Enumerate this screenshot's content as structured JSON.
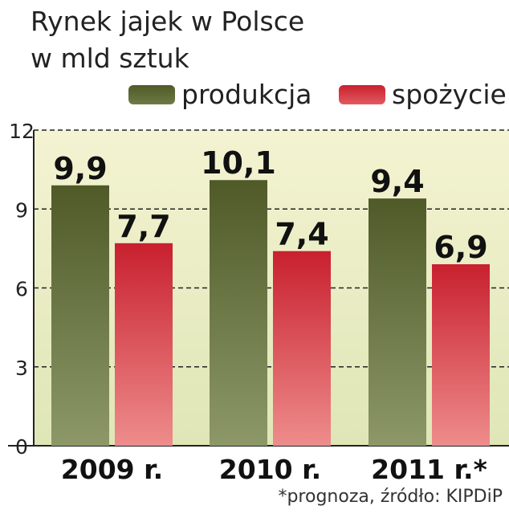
{
  "header": {
    "title_line1": "Rynek jajek w Polsce",
    "title_line2": "w mld sztuk"
  },
  "colors": {
    "production_top": "#4f5a28",
    "production_bottom": "#8c9868",
    "consumption_top": "#c8202e",
    "consumption_bottom": "#ee8c8c",
    "bg_top": "#f4f3d2",
    "bg_bottom": "#dfe6b6"
  },
  "footnote": "*prognoza, źródło: KIPDiP",
  "chart_data": {
    "type": "bar",
    "title": "Rynek jajek w Polsce w mld sztuk",
    "categories": [
      "2009 r.",
      "2010 r.",
      "2011 r.*"
    ],
    "series": [
      {
        "name": "produkcja",
        "values": [
          9.9,
          10.1,
          9.4
        ],
        "labels": [
          "9,9",
          "10,1",
          "9,4"
        ]
      },
      {
        "name": "spożycie",
        "values": [
          7.7,
          7.4,
          6.9
        ],
        "labels": [
          "7,7",
          "7,4",
          "6,9"
        ]
      }
    ],
    "yticks": [
      0,
      3,
      6,
      9,
      12
    ],
    "ylim": [
      0,
      12
    ],
    "grid": true,
    "legend": "top-right"
  }
}
